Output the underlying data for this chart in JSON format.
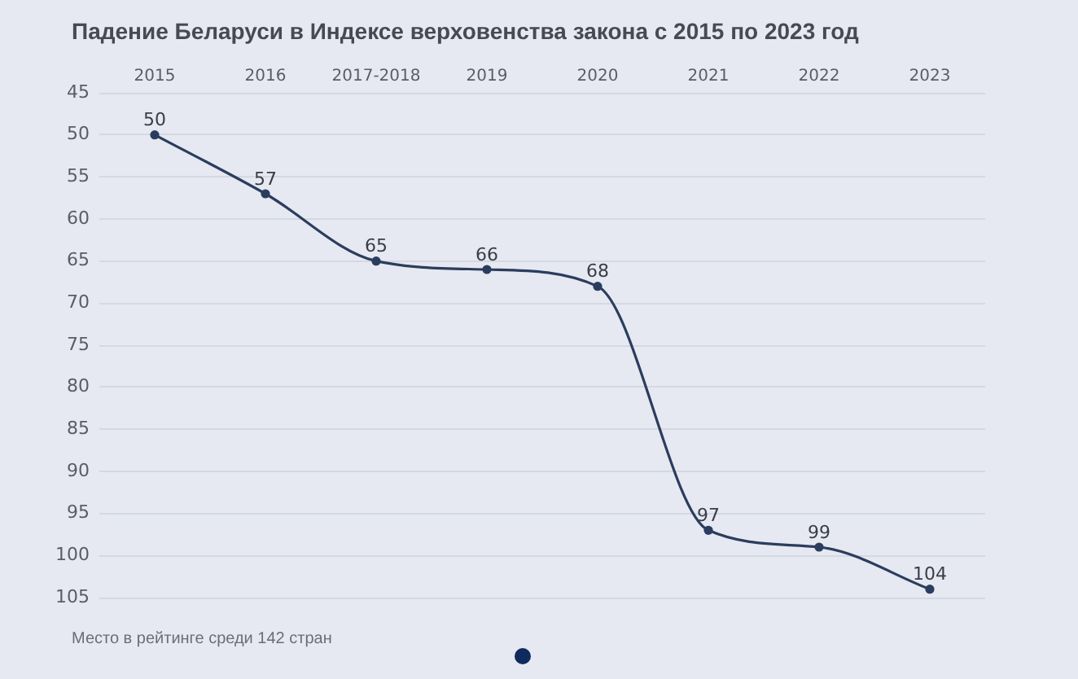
{
  "chart_data": {
    "type": "line",
    "title": "Падение Беларуси в Индексе верховенства закона с 2015 по 2023 год",
    "annotations": [
      "Место в рейтинге среди 142 стран"
    ],
    "categories": [
      "2015",
      "2016",
      "2017-2018",
      "2019",
      "2020",
      "2021",
      "2022",
      "2023"
    ],
    "values": [
      50,
      57,
      65,
      66,
      68,
      97,
      99,
      104
    ],
    "color": "#2b3d5e",
    "ylim": [
      105,
      45
    ],
    "yticks": [
      45,
      50,
      55,
      60,
      65,
      70,
      75,
      80,
      85,
      90,
      95,
      100,
      105
    ],
    "grid": "y",
    "legend": false,
    "marker": "circle",
    "line_style": "solid",
    "data_labels": true
  }
}
